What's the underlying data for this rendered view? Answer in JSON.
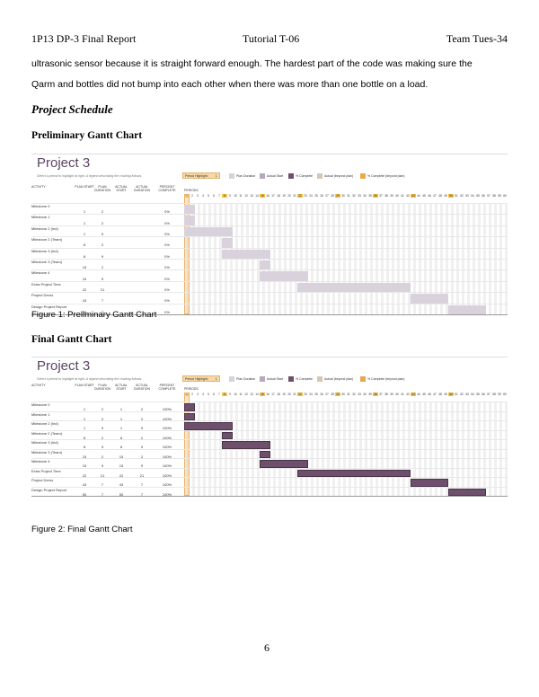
{
  "header": {
    "left": "1P13 DP-3 Final Report",
    "center": "Tutorial T-06",
    "right": "Team Tues-34"
  },
  "paragraph": [
    "ultrasonic sensor because it is straight forward enough. The hardest part of the code was making sure the",
    "Qarm and bottles did not bump into each other when there was more than one bottle on a load."
  ],
  "section_title": "Project Schedule",
  "prelim_heading": "Preliminary Gantt Chart",
  "final_heading": "Final Gantt Chart",
  "figure1_caption": "Figure 1: Preliminary Gantt Chart",
  "figure2_caption": "Figure 2: Final Gantt Chart",
  "page_number": "6",
  "gantt_common": {
    "title": "Project 3",
    "subtitle": "Select a period to highlight at right.  A legend describing the charting follows.",
    "period_highlight_label": "Period Highlight:",
    "period_highlight_value": "1",
    "legend": [
      {
        "label": "Plan Duration",
        "color": "#d9d2dd"
      },
      {
        "label": "Actual Start",
        "color": "#b7a8bd"
      },
      {
        "label": "% Complete",
        "color": "#6e4f6c"
      },
      {
        "label": "Actual (beyond plan)",
        "color": "#d8c6b4"
      },
      {
        "label": "% Complete (beyond plan)",
        "color": "#eba84a"
      }
    ],
    "columns": [
      "ACTIVITY",
      "PLAN START",
      "PLAN DURATION",
      "ACTUAL START",
      "ACTUAL DURATION",
      "PERCENT COMPLETE"
    ],
    "periods_label": "PERIODS",
    "period_count": 60,
    "highlighted_periods": [
      1,
      8,
      15,
      22,
      29,
      36,
      43,
      50
    ]
  },
  "preliminary": {
    "rows": [
      {
        "activity": "Milestone 0",
        "plan_start": "1",
        "plan_duration": "2",
        "actual_start": "",
        "actual_duration": "",
        "percent": "0%"
      },
      {
        "activity": "Milestone 1",
        "plan_start": "1",
        "plan_duration": "2",
        "actual_start": "",
        "actual_duration": "",
        "percent": "0%"
      },
      {
        "activity": "Milestone 2 (Ind)",
        "plan_start": "1",
        "plan_duration": "9",
        "actual_start": "",
        "actual_duration": "",
        "percent": "0%"
      },
      {
        "activity": "Milestone 2 (Team)",
        "plan_start": "8",
        "plan_duration": "2",
        "actual_start": "",
        "actual_duration": "",
        "percent": "0%"
      },
      {
        "activity": "Milestone 3 (Ind)",
        "plan_start": "8",
        "plan_duration": "9",
        "actual_start": "",
        "actual_duration": "",
        "percent": "0%"
      },
      {
        "activity": "Milestone 3 (Team)",
        "plan_start": "15",
        "plan_duration": "2",
        "actual_start": "",
        "actual_duration": "",
        "percent": "0%"
      },
      {
        "activity": "Milestone 4",
        "plan_start": "15",
        "plan_duration": "9",
        "actual_start": "",
        "actual_duration": "",
        "percent": "0%"
      },
      {
        "activity": "Extra Project Time",
        "plan_start": "22",
        "plan_duration": "21",
        "actual_start": "",
        "actual_duration": "",
        "percent": "0%"
      },
      {
        "activity": "Project Demo",
        "plan_start": "43",
        "plan_duration": "7",
        "actual_start": "",
        "actual_duration": "",
        "percent": "0%"
      },
      {
        "activity": "Design Project Report",
        "plan_start": "50",
        "plan_duration": "7",
        "actual_start": "",
        "actual_duration": "",
        "percent": "0%"
      }
    ]
  },
  "final": {
    "rows": [
      {
        "activity": "Milestone 0",
        "plan_start": "1",
        "plan_duration": "2",
        "actual_start": "1",
        "actual_duration": "2",
        "percent": "100%"
      },
      {
        "activity": "Milestone 1",
        "plan_start": "1",
        "plan_duration": "2",
        "actual_start": "1",
        "actual_duration": "2",
        "percent": "100%"
      },
      {
        "activity": "Milestone 2 (Ind)",
        "plan_start": "1",
        "plan_duration": "9",
        "actual_start": "1",
        "actual_duration": "9",
        "percent": "100%"
      },
      {
        "activity": "Milestone 2 (Team)",
        "plan_start": "8",
        "plan_duration": "2",
        "actual_start": "8",
        "actual_duration": "2",
        "percent": "100%"
      },
      {
        "activity": "Milestone 3 (Ind)",
        "plan_start": "8",
        "plan_duration": "9",
        "actual_start": "8",
        "actual_duration": "9",
        "percent": "100%"
      },
      {
        "activity": "Milestone 3 (Team)",
        "plan_start": "15",
        "plan_duration": "2",
        "actual_start": "15",
        "actual_duration": "2",
        "percent": "100%"
      },
      {
        "activity": "Milestone 4",
        "plan_start": "15",
        "plan_duration": "9",
        "actual_start": "15",
        "actual_duration": "9",
        "percent": "100%"
      },
      {
        "activity": "Extra Project Time",
        "plan_start": "22",
        "plan_duration": "21",
        "actual_start": "22",
        "actual_duration": "21",
        "percent": "100%"
      },
      {
        "activity": "Project Demo",
        "plan_start": "43",
        "plan_duration": "7",
        "actual_start": "43",
        "actual_duration": "7",
        "percent": "100%"
      },
      {
        "activity": "Design Project Report",
        "plan_start": "50",
        "plan_duration": "7",
        "actual_start": "50",
        "actual_duration": "7",
        "percent": "100%"
      }
    ]
  }
}
